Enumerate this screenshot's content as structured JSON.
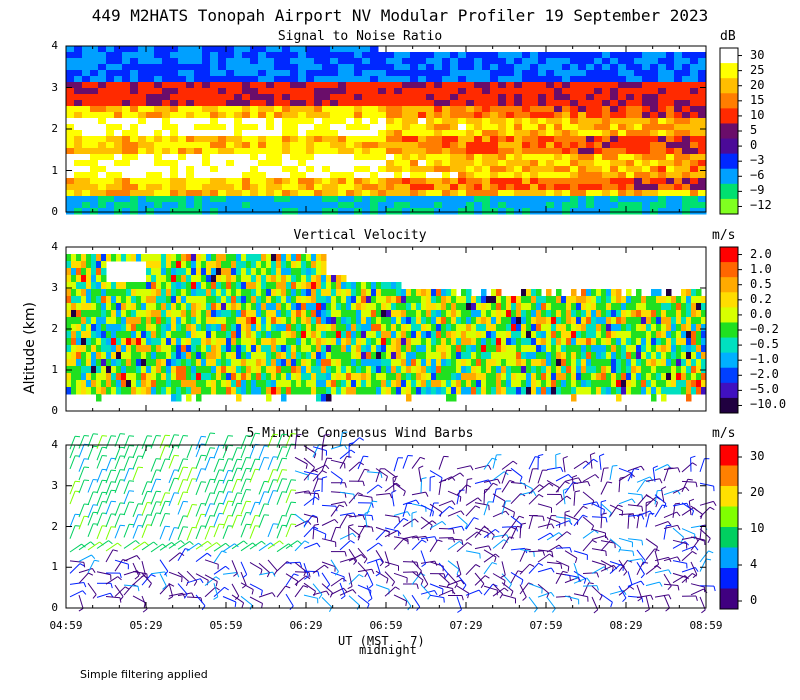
{
  "title": "449 M2HATS Tonopah Airport NV Modular Profiler 19 September 2023",
  "y_axis_title": "Altitude (km)",
  "x_axis_title": "UT (MST - 7)",
  "x_axis_note": "midnight",
  "footer": "Simple filtering applied",
  "chart_data": [
    {
      "type": "heatmap",
      "title": "Signal to Noise Ratio",
      "unit": "dB",
      "ylim": [
        0,
        4
      ],
      "y_ticks": [
        "0",
        "1",
        "2",
        "3",
        "4"
      ],
      "x_ticks": [
        "04:59",
        "05:29",
        "05:59",
        "06:29",
        "06:59",
        "07:29",
        "07:59",
        "08:29",
        "08:59"
      ],
      "colorbar": {
        "labels": [
          "30",
          "25",
          "20",
          "15",
          "10",
          "5",
          "0",
          "−3",
          "−6",
          "−9",
          "−12"
        ],
        "colors": [
          "#ffffff",
          "#ffff00",
          "#ffbe00",
          "#ff7d00",
          "#ff2a00",
          "#6a0d6a",
          "#4b0a98",
          "#0028ff",
          "#00a0ff",
          "#00e070",
          "#80ff20"
        ]
      },
      "description": "Low SNR near surface below 0.5 km and above 3 km; strong 10-25 dB layer 0.5-2.8 km, decreasing after 06:59"
    },
    {
      "type": "heatmap",
      "title": "Vertical Velocity",
      "unit": "m/s",
      "ylim": [
        0,
        4
      ],
      "y_ticks": [
        "0",
        "1",
        "2",
        "3",
        "4"
      ],
      "colorbar": {
        "labels": [
          "2.0",
          "1.0",
          "0.5",
          "0.2",
          "0.0",
          "−0.2",
          "−0.5",
          "−1.0",
          "−2.0",
          "−5.0",
          "−10.0"
        ],
        "colors": [
          "#ff0000",
          "#ff6600",
          "#ffaa00",
          "#ffdd00",
          "#d8ff00",
          "#20e020",
          "#00e0c0",
          "#00b0ff",
          "#0040ff",
          "#4010c0",
          "#200040"
        ]
      },
      "description": "Mostly -0.5 to +0.5 m/s mixing from 0.3 to 4 km early, top lowering to about 2.8 km after 07:15"
    },
    {
      "type": "barbs",
      "title": "5 Minute Consensus Wind Barbs",
      "unit": "m/s",
      "ylim": [
        0,
        4
      ],
      "y_ticks": [
        "0",
        "1",
        "2",
        "3",
        "4"
      ],
      "colorbar": {
        "labels": [
          "30",
          "20",
          "10",
          "4",
          "0"
        ],
        "colors": [
          "#ff0000",
          "#ff8000",
          "#ffe000",
          "#80ff00",
          "#00d060",
          "#00a0ff",
          "#0020ff",
          "#400080"
        ]
      },
      "description": "Moderate 10-15 m/s northerly winds 2-4 km early; weaker 0-5 m/s variable winds later"
    }
  ]
}
